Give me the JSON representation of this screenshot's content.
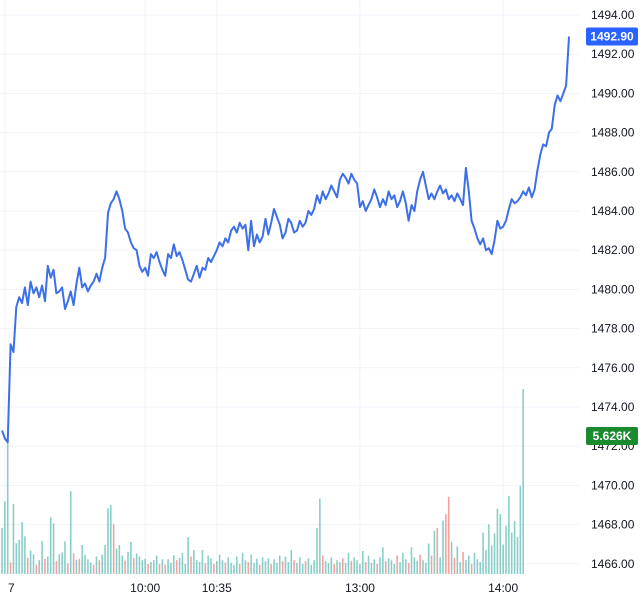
{
  "chart_data": {
    "type": "line",
    "colors": {
      "price_line": "#3c6fe8",
      "price_badge": "#2962ff",
      "volume_badge": "#1b8a2f",
      "volume_up": "#26a69a",
      "volume_down": "#ef5350",
      "grid": "#f0f3fa",
      "text": "#131722"
    },
    "y_axis": {
      "ylim": [
        1465.5,
        1494.6
      ],
      "tick_values": [
        1494,
        1492,
        1490,
        1488,
        1486,
        1484,
        1482,
        1480,
        1478,
        1476,
        1474,
        1472,
        1470,
        1468,
        1466
      ],
      "tick_labels": [
        "1494.00",
        "1492.00",
        "1490.00",
        "1488.00",
        "1486.00",
        "1484.00",
        "1482.00",
        "1480.00",
        "1478.00",
        "1476.00",
        "1474.00",
        "1472.00",
        "1470.00",
        "1468.00",
        "1466.00"
      ]
    },
    "x_axis": {
      "ticks": [
        {
          "label": "7",
          "index": 1
        },
        {
          "label": "10:00",
          "index": 50
        },
        {
          "label": "10:35",
          "index": 75
        },
        {
          "label": "13:00",
          "index": 125
        },
        {
          "label": "14:00",
          "index": 175
        }
      ]
    },
    "last_price_label": "1492.90",
    "last_price": 1492.9,
    "volume_label": "5.626K",
    "price_series": [
      1472.8,
      1472.4,
      1472.2,
      1477.2,
      1476.8,
      1479.1,
      1479.6,
      1479.3,
      1480.1,
      1479.2,
      1480.4,
      1479.8,
      1480.1,
      1479.6,
      1480.2,
      1479.4,
      1481.2,
      1480.6,
      1481.0,
      1479.8,
      1479.9,
      1480.1,
      1479.0,
      1479.4,
      1479.9,
      1479.2,
      1480.3,
      1481.1,
      1480.1,
      1480.3,
      1479.9,
      1480.2,
      1480.4,
      1480.8,
      1480.4,
      1481.1,
      1481.6,
      1483.9,
      1484.4,
      1484.6,
      1485.0,
      1484.6,
      1484.0,
      1483.1,
      1482.9,
      1482.4,
      1482.1,
      1482.0,
      1481.2,
      1480.9,
      1481.1,
      1480.7,
      1481.8,
      1481.6,
      1481.9,
      1481.4,
      1481.0,
      1480.7,
      1481.8,
      1481.6,
      1482.3,
      1481.7,
      1481.9,
      1481.5,
      1481.0,
      1480.5,
      1480.4,
      1480.8,
      1481.2,
      1480.6,
      1481.1,
      1481.0,
      1481.6,
      1481.4,
      1481.7,
      1482.0,
      1482.4,
      1482.2,
      1482.6,
      1482.4,
      1483.0,
      1483.2,
      1482.9,
      1483.4,
      1483.1,
      1483.3,
      1482.0,
      1483.5,
      1482.2,
      1482.8,
      1482.4,
      1482.7,
      1483.6,
      1482.8,
      1483.4,
      1484.1,
      1483.7,
      1483.3,
      1482.6,
      1482.9,
      1483.6,
      1483.4,
      1482.9,
      1483.0,
      1483.5,
      1483.2,
      1483.4,
      1484.0,
      1483.8,
      1484.1,
      1484.8,
      1484.4,
      1485.0,
      1484.6,
      1484.9,
      1485.3,
      1485.0,
      1484.7,
      1485.6,
      1485.9,
      1485.7,
      1485.4,
      1485.9,
      1485.6,
      1485.4,
      1484.2,
      1484.5,
      1484.0,
      1484.3,
      1484.6,
      1485.1,
      1484.7,
      1484.2,
      1484.6,
      1484.3,
      1485.0,
      1484.6,
      1484.8,
      1484.2,
      1484.5,
      1485.0,
      1484.4,
      1483.5,
      1484.3,
      1484.0,
      1485.0,
      1485.6,
      1486.0,
      1485.3,
      1484.6,
      1484.9,
      1484.6,
      1485.0,
      1485.3,
      1484.9,
      1485.1,
      1484.6,
      1484.8,
      1484.5,
      1484.9,
      1484.6,
      1484.3,
      1486.2,
      1485.0,
      1483.5,
      1483.1,
      1482.6,
      1482.3,
      1482.6,
      1482.0,
      1482.1,
      1481.8,
      1482.5,
      1483.5,
      1483.1,
      1483.2,
      1483.5,
      1484.1,
      1484.6,
      1484.4,
      1484.5,
      1484.7,
      1485.0,
      1484.8,
      1485.2,
      1484.7,
      1485.1,
      1486.1,
      1486.9,
      1487.4,
      1487.3,
      1488.0,
      1488.2,
      1489.4,
      1489.9,
      1489.6,
      1490.0,
      1490.4,
      1492.9
    ],
    "volume_series": [
      {
        "v": 1.0,
        "d": "up"
      },
      {
        "v": 1.58,
        "d": "up"
      },
      {
        "v": 3.0,
        "d": "up"
      },
      {
        "v": 0.25,
        "d": "down"
      },
      {
        "v": 1.52,
        "d": "up"
      },
      {
        "v": 0.67,
        "d": "up"
      },
      {
        "v": 0.74,
        "d": "up"
      },
      {
        "v": 1.13,
        "d": "up"
      },
      {
        "v": 0.82,
        "d": "up"
      },
      {
        "v": 0.35,
        "d": "down"
      },
      {
        "v": 0.51,
        "d": "up"
      },
      {
        "v": 0.43,
        "d": "up"
      },
      {
        "v": 0.2,
        "d": "down"
      },
      {
        "v": 0.3,
        "d": "up"
      },
      {
        "v": 0.72,
        "d": "up"
      },
      {
        "v": 0.33,
        "d": "down"
      },
      {
        "v": 0.38,
        "d": "up"
      },
      {
        "v": 1.23,
        "d": "up"
      },
      {
        "v": 1.1,
        "d": "up"
      },
      {
        "v": 0.28,
        "d": "down"
      },
      {
        "v": 0.43,
        "d": "up"
      },
      {
        "v": 0.47,
        "d": "up"
      },
      {
        "v": 0.71,
        "d": "up"
      },
      {
        "v": 0.23,
        "d": "down"
      },
      {
        "v": 1.8,
        "d": "up"
      },
      {
        "v": 0.45,
        "d": "down"
      },
      {
        "v": 0.31,
        "d": "up"
      },
      {
        "v": 0.33,
        "d": "down"
      },
      {
        "v": 0.63,
        "d": "up"
      },
      {
        "v": 0.42,
        "d": "up"
      },
      {
        "v": 0.32,
        "d": "up"
      },
      {
        "v": 0.25,
        "d": "up"
      },
      {
        "v": 0.2,
        "d": "down"
      },
      {
        "v": 0.38,
        "d": "up"
      },
      {
        "v": 0.3,
        "d": "down"
      },
      {
        "v": 0.42,
        "d": "up"
      },
      {
        "v": 0.63,
        "d": "up"
      },
      {
        "v": 1.43,
        "d": "up"
      },
      {
        "v": 1.5,
        "d": "up"
      },
      {
        "v": 1.08,
        "d": "down"
      },
      {
        "v": 0.55,
        "d": "up"
      },
      {
        "v": 0.63,
        "d": "up"
      },
      {
        "v": 0.4,
        "d": "up"
      },
      {
        "v": 0.29,
        "d": "down"
      },
      {
        "v": 0.48,
        "d": "up"
      },
      {
        "v": 0.7,
        "d": "up"
      },
      {
        "v": 0.35,
        "d": "down"
      },
      {
        "v": 0.45,
        "d": "up"
      },
      {
        "v": 0.38,
        "d": "up"
      },
      {
        "v": 0.3,
        "d": "up"
      },
      {
        "v": 0.33,
        "d": "up"
      },
      {
        "v": 0.22,
        "d": "down"
      },
      {
        "v": 0.26,
        "d": "up"
      },
      {
        "v": 0.3,
        "d": "up"
      },
      {
        "v": 0.4,
        "d": "up"
      },
      {
        "v": 0.22,
        "d": "down"
      },
      {
        "v": 0.32,
        "d": "up"
      },
      {
        "v": 0.2,
        "d": "down"
      },
      {
        "v": 0.32,
        "d": "up"
      },
      {
        "v": 0.24,
        "d": "up"
      },
      {
        "v": 0.41,
        "d": "up"
      },
      {
        "v": 0.3,
        "d": "down"
      },
      {
        "v": 0.35,
        "d": "up"
      },
      {
        "v": 0.46,
        "d": "up"
      },
      {
        "v": 0.22,
        "d": "up"
      },
      {
        "v": 0.8,
        "d": "up"
      },
      {
        "v": 0.38,
        "d": "down"
      },
      {
        "v": 0.52,
        "d": "up"
      },
      {
        "v": 0.3,
        "d": "up"
      },
      {
        "v": 0.26,
        "d": "up"
      },
      {
        "v": 0.52,
        "d": "up"
      },
      {
        "v": 0.24,
        "d": "down"
      },
      {
        "v": 0.4,
        "d": "up"
      },
      {
        "v": 0.34,
        "d": "up"
      },
      {
        "v": 0.22,
        "d": "down"
      },
      {
        "v": 0.28,
        "d": "up"
      },
      {
        "v": 0.42,
        "d": "up"
      },
      {
        "v": 0.3,
        "d": "up"
      },
      {
        "v": 0.25,
        "d": "down"
      },
      {
        "v": 0.36,
        "d": "up"
      },
      {
        "v": 0.24,
        "d": "up"
      },
      {
        "v": 0.2,
        "d": "up"
      },
      {
        "v": 0.38,
        "d": "up"
      },
      {
        "v": 0.22,
        "d": "down"
      },
      {
        "v": 0.46,
        "d": "up"
      },
      {
        "v": 0.3,
        "d": "up"
      },
      {
        "v": 0.26,
        "d": "down"
      },
      {
        "v": 0.42,
        "d": "up"
      },
      {
        "v": 0.24,
        "d": "up"
      },
      {
        "v": 0.33,
        "d": "up"
      },
      {
        "v": 0.2,
        "d": "down"
      },
      {
        "v": 0.36,
        "d": "up"
      },
      {
        "v": 0.28,
        "d": "up"
      },
      {
        "v": 0.34,
        "d": "up"
      },
      {
        "v": 0.22,
        "d": "down"
      },
      {
        "v": 0.32,
        "d": "up"
      },
      {
        "v": 0.24,
        "d": "up"
      },
      {
        "v": 0.4,
        "d": "up"
      },
      {
        "v": 0.28,
        "d": "down"
      },
      {
        "v": 0.38,
        "d": "up"
      },
      {
        "v": 0.26,
        "d": "up"
      },
      {
        "v": 0.52,
        "d": "up"
      },
      {
        "v": 0.3,
        "d": "down"
      },
      {
        "v": 0.24,
        "d": "up"
      },
      {
        "v": 0.36,
        "d": "up"
      },
      {
        "v": 0.22,
        "d": "up"
      },
      {
        "v": 0.28,
        "d": "down"
      },
      {
        "v": 0.34,
        "d": "up"
      },
      {
        "v": 0.2,
        "d": "up"
      },
      {
        "v": 0.3,
        "d": "up"
      },
      {
        "v": 1.0,
        "d": "up"
      },
      {
        "v": 1.64,
        "d": "up"
      },
      {
        "v": 0.4,
        "d": "down"
      },
      {
        "v": 0.28,
        "d": "up"
      },
      {
        "v": 0.24,
        "d": "up"
      },
      {
        "v": 0.36,
        "d": "up"
      },
      {
        "v": 0.22,
        "d": "down"
      },
      {
        "v": 0.3,
        "d": "up"
      },
      {
        "v": 0.26,
        "d": "up"
      },
      {
        "v": 0.34,
        "d": "down"
      },
      {
        "v": 0.24,
        "d": "up"
      },
      {
        "v": 0.46,
        "d": "up"
      },
      {
        "v": 0.28,
        "d": "down"
      },
      {
        "v": 0.36,
        "d": "up"
      },
      {
        "v": 0.3,
        "d": "up"
      },
      {
        "v": 0.22,
        "d": "up"
      },
      {
        "v": 0.5,
        "d": "up"
      },
      {
        "v": 0.26,
        "d": "down"
      },
      {
        "v": 0.4,
        "d": "up"
      },
      {
        "v": 0.24,
        "d": "up"
      },
      {
        "v": 0.32,
        "d": "up"
      },
      {
        "v": 0.22,
        "d": "down"
      },
      {
        "v": 0.36,
        "d": "up"
      },
      {
        "v": 0.58,
        "d": "up"
      },
      {
        "v": 0.28,
        "d": "down"
      },
      {
        "v": 0.34,
        "d": "up"
      },
      {
        "v": 0.3,
        "d": "up"
      },
      {
        "v": 0.22,
        "d": "up"
      },
      {
        "v": 0.4,
        "d": "down"
      },
      {
        "v": 0.26,
        "d": "up"
      },
      {
        "v": 0.46,
        "d": "up"
      },
      {
        "v": 0.32,
        "d": "up"
      },
      {
        "v": 0.24,
        "d": "down"
      },
      {
        "v": 0.58,
        "d": "up"
      },
      {
        "v": 0.36,
        "d": "up"
      },
      {
        "v": 0.28,
        "d": "up"
      },
      {
        "v": 0.42,
        "d": "down"
      },
      {
        "v": 0.3,
        "d": "up"
      },
      {
        "v": 0.24,
        "d": "up"
      },
      {
        "v": 0.66,
        "d": "up"
      },
      {
        "v": 0.4,
        "d": "down"
      },
      {
        "v": 0.94,
        "d": "up"
      },
      {
        "v": 1.0,
        "d": "down"
      },
      {
        "v": 0.36,
        "d": "up"
      },
      {
        "v": 1.16,
        "d": "up"
      },
      {
        "v": 1.3,
        "d": "down"
      },
      {
        "v": 1.68,
        "d": "down"
      },
      {
        "v": 0.7,
        "d": "up"
      },
      {
        "v": 0.35,
        "d": "down"
      },
      {
        "v": 0.6,
        "d": "up"
      },
      {
        "v": 0.26,
        "d": "up"
      },
      {
        "v": 0.48,
        "d": "down"
      },
      {
        "v": 0.3,
        "d": "up"
      },
      {
        "v": 0.4,
        "d": "up"
      },
      {
        "v": 0.22,
        "d": "down"
      },
      {
        "v": 0.46,
        "d": "up"
      },
      {
        "v": 0.32,
        "d": "up"
      },
      {
        "v": 0.26,
        "d": "up"
      },
      {
        "v": 0.9,
        "d": "up"
      },
      {
        "v": 0.52,
        "d": "up"
      },
      {
        "v": 1.08,
        "d": "up"
      },
      {
        "v": 0.62,
        "d": "up"
      },
      {
        "v": 0.88,
        "d": "up"
      },
      {
        "v": 1.42,
        "d": "up"
      },
      {
        "v": 1.3,
        "d": "up"
      },
      {
        "v": 0.64,
        "d": "up"
      },
      {
        "v": 1.05,
        "d": "up"
      },
      {
        "v": 1.7,
        "d": "up"
      },
      {
        "v": 0.9,
        "d": "up"
      },
      {
        "v": 1.15,
        "d": "up"
      },
      {
        "v": 0.8,
        "d": "up"
      },
      {
        "v": 1.92,
        "d": "up"
      },
      {
        "v": 4.02,
        "d": "up"
      }
    ]
  }
}
